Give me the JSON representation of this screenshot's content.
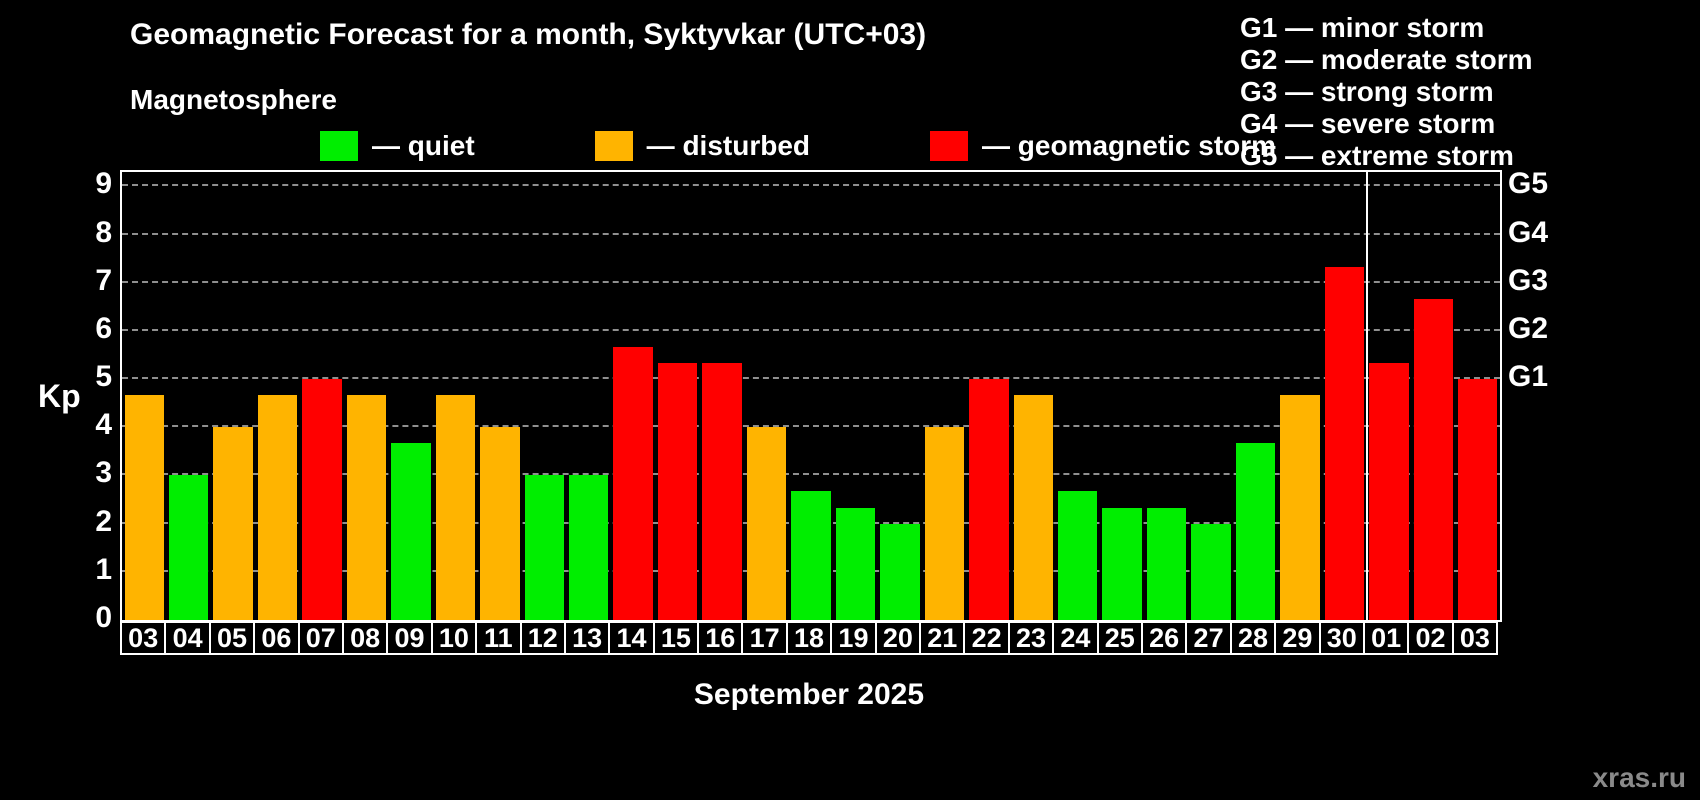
{
  "header": {
    "title": "Geomagnetic Forecast for a month, Syktyvkar (UTC+03)",
    "subtitle": "Magnetosphere"
  },
  "legend": {
    "items": [
      {
        "key": "quiet",
        "label": "— quiet",
        "color": "#00ee00"
      },
      {
        "key": "disturbed",
        "label": "— disturbed",
        "color": "#ffb400"
      },
      {
        "key": "storm",
        "label": "— geomagnetic storm",
        "color": "#ff0000"
      }
    ]
  },
  "g_scale_legend": {
    "items": [
      "G1 — minor storm",
      "G2 — moderate storm",
      "G3 — strong storm",
      "G4 — severe storm",
      "G5 — extreme storm"
    ]
  },
  "chart_data": {
    "type": "bar",
    "title": "Geomagnetic Forecast for a month, Syktyvkar (UTC+03)",
    "xlabel": "September 2025",
    "ylabel": "Kp",
    "ylim": [
      0,
      9.3
    ],
    "yticks": [
      0,
      1,
      2,
      3,
      4,
      5,
      6,
      7,
      8,
      9
    ],
    "right_axis_ticks": [
      {
        "label": "G1",
        "value": 5
      },
      {
        "label": "G2",
        "value": 6
      },
      {
        "label": "G3",
        "value": 7
      },
      {
        "label": "G4",
        "value": 8
      },
      {
        "label": "G5",
        "value": 9
      }
    ],
    "grid": "dashed",
    "categories": [
      "03",
      "04",
      "05",
      "06",
      "07",
      "08",
      "09",
      "10",
      "11",
      "12",
      "13",
      "14",
      "15",
      "16",
      "17",
      "18",
      "19",
      "20",
      "21",
      "22",
      "23",
      "24",
      "25",
      "26",
      "27",
      "28",
      "29",
      "30",
      "01",
      "02",
      "03"
    ],
    "values": [
      4.67,
      3.0,
      4.0,
      4.67,
      5.0,
      4.67,
      3.67,
      4.67,
      4.0,
      3.0,
      3.0,
      5.67,
      5.33,
      5.33,
      4.0,
      2.67,
      2.33,
      2.0,
      4.0,
      5.0,
      4.67,
      2.67,
      2.33,
      2.33,
      2.0,
      3.67,
      4.67,
      7.33,
      5.33,
      6.67,
      5.0
    ],
    "statuses": [
      "disturbed",
      "quiet",
      "disturbed",
      "disturbed",
      "storm",
      "disturbed",
      "quiet",
      "disturbed",
      "disturbed",
      "quiet",
      "quiet",
      "storm",
      "storm",
      "storm",
      "disturbed",
      "quiet",
      "quiet",
      "quiet",
      "disturbed",
      "storm",
      "disturbed",
      "quiet",
      "quiet",
      "quiet",
      "quiet",
      "quiet",
      "disturbed",
      "storm",
      "storm",
      "storm",
      "storm"
    ],
    "colors": {
      "quiet": "#00ee00",
      "disturbed": "#ffb400",
      "storm": "#ff0000"
    },
    "month_divider_after_index": 27
  },
  "footer": {
    "xaxis_title": "September 2025",
    "watermark": "xras.ru"
  }
}
